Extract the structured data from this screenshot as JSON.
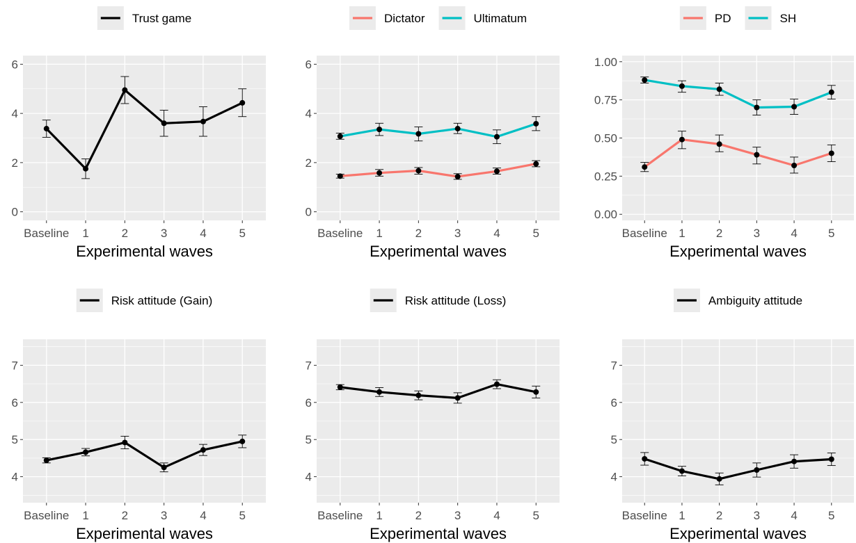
{
  "chart_data": [
    {
      "type": "line",
      "categories": [
        "Baseline",
        "1",
        "2",
        "3",
        "4",
        "5"
      ],
      "xlabel": "Experimental waves",
      "ylim": [
        -0.35,
        6.35
      ],
      "yticks": [
        0,
        2,
        4,
        6
      ],
      "grid": true,
      "legend_position": "top",
      "series": [
        {
          "name": "Trust game",
          "color": "#000000",
          "values": [
            3.38,
            1.75,
            4.95,
            3.6,
            3.67,
            4.43
          ],
          "lower": [
            3.03,
            1.35,
            4.4,
            3.07,
            3.07,
            3.87
          ],
          "upper": [
            3.73,
            2.15,
            5.5,
            4.13,
            4.27,
            5.0
          ]
        }
      ]
    },
    {
      "type": "line",
      "categories": [
        "Baseline",
        "1",
        "2",
        "3",
        "4",
        "5"
      ],
      "xlabel": "Experimental waves",
      "ylim": [
        -0.35,
        6.35
      ],
      "yticks": [
        0,
        2,
        4,
        6
      ],
      "grid": true,
      "legend_position": "top",
      "series": [
        {
          "name": "Dictator",
          "color": "#f8766d",
          "values": [
            1.45,
            1.58,
            1.67,
            1.43,
            1.65,
            1.95
          ],
          "lower": [
            1.37,
            1.45,
            1.53,
            1.32,
            1.53,
            1.83
          ],
          "upper": [
            1.53,
            1.72,
            1.8,
            1.55,
            1.78,
            2.08
          ]
        },
        {
          "name": "Ultimatum",
          "color": "#00bfc4",
          "values": [
            3.07,
            3.35,
            3.17,
            3.38,
            3.05,
            3.58
          ],
          "lower": [
            2.95,
            3.1,
            2.88,
            3.18,
            2.77,
            3.3
          ],
          "upper": [
            3.2,
            3.6,
            3.45,
            3.6,
            3.33,
            3.87
          ]
        }
      ]
    },
    {
      "type": "line",
      "categories": [
        "Baseline",
        "1",
        "2",
        "3",
        "4",
        "5"
      ],
      "xlabel": "Experimental waves",
      "ylim": [
        -0.04,
        1.04
      ],
      "yticks": [
        0.0,
        0.25,
        0.5,
        0.75,
        1.0
      ],
      "ytick_labels": [
        "0.00",
        "0.25",
        "0.50",
        "0.75",
        "1.00"
      ],
      "grid": true,
      "legend_position": "top",
      "series": [
        {
          "name": "PD",
          "color": "#f8766d",
          "values": [
            0.31,
            0.49,
            0.46,
            0.39,
            0.32,
            0.4
          ],
          "lower": [
            0.28,
            0.43,
            0.41,
            0.33,
            0.27,
            0.345
          ],
          "upper": [
            0.34,
            0.545,
            0.52,
            0.44,
            0.375,
            0.455
          ]
        },
        {
          "name": "SH",
          "color": "#00bfc4",
          "values": [
            0.88,
            0.84,
            0.82,
            0.7,
            0.705,
            0.8
          ],
          "lower": [
            0.86,
            0.8,
            0.78,
            0.65,
            0.655,
            0.755
          ],
          "upper": [
            0.9,
            0.875,
            0.86,
            0.75,
            0.755,
            0.845
          ]
        }
      ]
    },
    {
      "type": "line",
      "categories": [
        "Baseline",
        "1",
        "2",
        "3",
        "4",
        "5"
      ],
      "xlabel": "Experimental waves",
      "ylim": [
        3.3,
        7.7
      ],
      "yticks": [
        4,
        5,
        6,
        7
      ],
      "grid": true,
      "legend_position": "top",
      "series": [
        {
          "name": "Risk attitude (Gain)",
          "color": "#000000",
          "values": [
            4.44,
            4.66,
            4.92,
            4.25,
            4.72,
            4.95
          ],
          "lower": [
            4.37,
            4.56,
            4.75,
            4.13,
            4.57,
            4.78
          ],
          "upper": [
            4.51,
            4.76,
            5.09,
            4.37,
            4.87,
            5.12
          ]
        }
      ]
    },
    {
      "type": "line",
      "categories": [
        "Baseline",
        "1",
        "2",
        "3",
        "4",
        "5"
      ],
      "xlabel": "Experimental waves",
      "ylim": [
        3.3,
        7.7
      ],
      "yticks": [
        4,
        5,
        6,
        7
      ],
      "grid": true,
      "legend_position": "top",
      "series": [
        {
          "name": "Risk attitude (Loss)",
          "color": "#000000",
          "values": [
            6.41,
            6.28,
            6.19,
            6.12,
            6.49,
            6.28
          ],
          "lower": [
            6.34,
            6.16,
            6.07,
            5.98,
            6.37,
            6.12
          ],
          "upper": [
            6.48,
            6.4,
            6.31,
            6.26,
            6.61,
            6.44
          ]
        }
      ]
    },
    {
      "type": "line",
      "categories": [
        "Baseline",
        "1",
        "2",
        "3",
        "4",
        "5"
      ],
      "xlabel": "Experimental waves",
      "ylim": [
        3.3,
        7.7
      ],
      "yticks": [
        4,
        5,
        6,
        7
      ],
      "grid": true,
      "legend_position": "top",
      "series": [
        {
          "name": "Ambiguity attitude",
          "color": "#000000",
          "values": [
            4.48,
            4.15,
            3.94,
            4.18,
            4.41,
            4.47
          ],
          "lower": [
            4.31,
            4.02,
            3.78,
            3.99,
            4.23,
            4.3
          ],
          "upper": [
            4.65,
            4.28,
            4.1,
            4.37,
            4.59,
            4.64
          ]
        }
      ]
    }
  ]
}
